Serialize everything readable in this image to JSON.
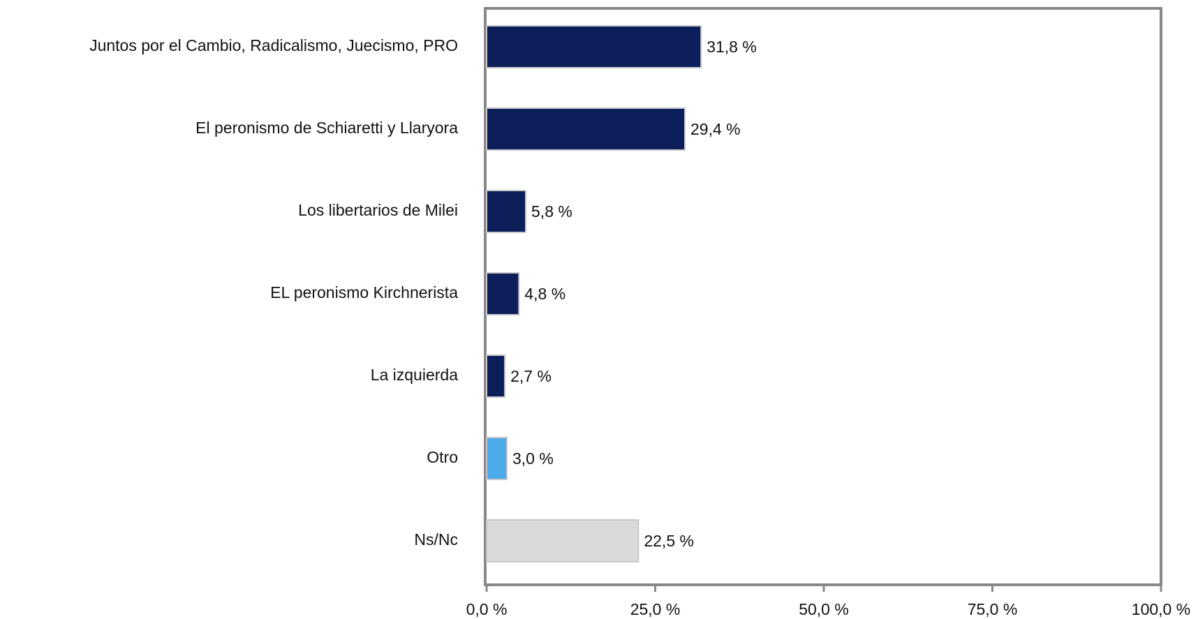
{
  "chart_data": {
    "type": "hbar",
    "categories": [
      "Juntos por el Cambio, Radicalismo, Juecismo, PRO",
      "El peronismo de Schiaretti y Llaryora",
      "Los libertarios de Milei",
      "EL peronismo Kirchnerista",
      "La izquierda",
      "Otro",
      "Ns/Nc"
    ],
    "values": [
      31.8,
      29.4,
      5.8,
      4.8,
      2.7,
      3.0,
      22.5
    ],
    "value_labels": [
      "31,8 %",
      "29,4 %",
      "5,8 %",
      "4,8 %",
      "2,7 %",
      "3,0 %",
      "22,5 %"
    ],
    "colors": [
      "#0c1f5a",
      "#0c1f5a",
      "#0c1f5a",
      "#0c1f5a",
      "#0c1f5a",
      "#4dabea",
      "#d9d9d9"
    ],
    "xlim": [
      0,
      100
    ],
    "xticks": [
      {
        "value": 0,
        "label": "0,0 %"
      },
      {
        "value": 25,
        "label": "25,0 %"
      },
      {
        "value": 50,
        "label": "50,0 %"
      },
      {
        "value": 75,
        "label": "75,0 %"
      },
      {
        "value": 100,
        "label": "100,0 %"
      }
    ]
  }
}
